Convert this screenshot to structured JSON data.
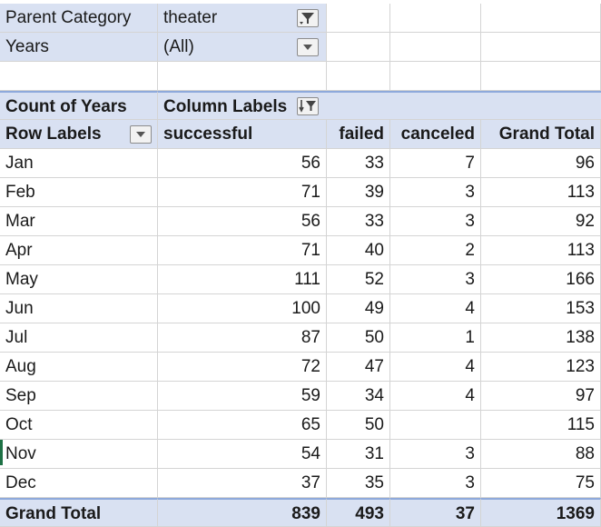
{
  "filters": [
    {
      "label": "Parent Category",
      "value": "theater",
      "icon": "filter-applied-icon"
    },
    {
      "label": "Years",
      "value": "(All)",
      "icon": "chevron-down-icon"
    }
  ],
  "header": {
    "values_label": "Count of Years",
    "column_labels": "Column Labels",
    "row_labels": "Row Labels",
    "columns": [
      "successful",
      "failed",
      "canceled",
      "Grand Total"
    ]
  },
  "rows": [
    {
      "label": "Jan",
      "successful": "56",
      "failed": "33",
      "canceled": "7",
      "total": "96"
    },
    {
      "label": "Feb",
      "successful": "71",
      "failed": "39",
      "canceled": "3",
      "total": "113"
    },
    {
      "label": "Mar",
      "successful": "56",
      "failed": "33",
      "canceled": "3",
      "total": "92"
    },
    {
      "label": "Apr",
      "successful": "71",
      "failed": "40",
      "canceled": "2",
      "total": "113"
    },
    {
      "label": "May",
      "successful": "111",
      "failed": "52",
      "canceled": "3",
      "total": "166"
    },
    {
      "label": "Jun",
      "successful": "100",
      "failed": "49",
      "canceled": "4",
      "total": "153"
    },
    {
      "label": "Jul",
      "successful": "87",
      "failed": "50",
      "canceled": "1",
      "total": "138"
    },
    {
      "label": "Aug",
      "successful": "72",
      "failed": "47",
      "canceled": "4",
      "total": "123"
    },
    {
      "label": "Sep",
      "successful": "59",
      "failed": "34",
      "canceled": "4",
      "total": "97"
    },
    {
      "label": "Oct",
      "successful": "65",
      "failed": "50",
      "canceled": "",
      "total": "115"
    },
    {
      "label": "Nov",
      "successful": "54",
      "failed": "31",
      "canceled": "3",
      "total": "88"
    },
    {
      "label": "Dec",
      "successful": "37",
      "failed": "35",
      "canceled": "3",
      "total": "75"
    }
  ],
  "grand_total": {
    "label": "Grand Total",
    "successful": "839",
    "failed": "493",
    "canceled": "37",
    "total": "1369"
  },
  "colors": {
    "header_fill": "#d9e1f2",
    "border_accent": "#8ea9db"
  }
}
